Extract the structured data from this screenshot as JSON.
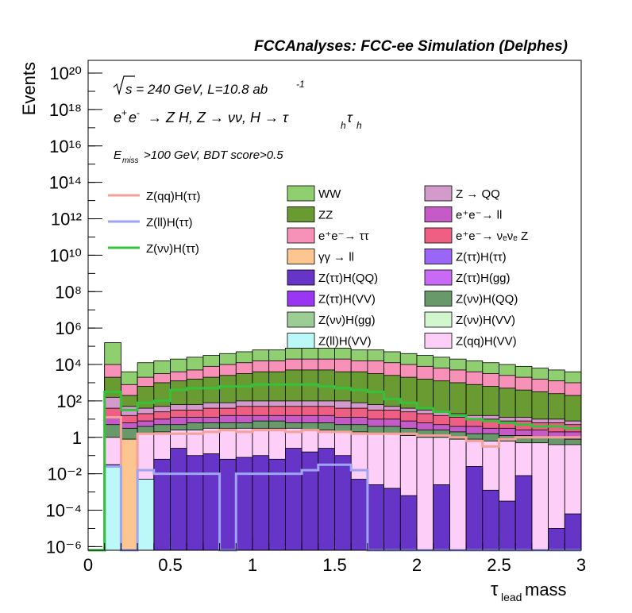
{
  "chart_data": {
    "type": "histogram-stack",
    "title": "FCCAnalyses: FCC-ee Simulation (Delphes)",
    "xlabel": "τ_lead mass",
    "ylabel": "Events",
    "xlim": [
      0,
      3
    ],
    "ylim_log10": [
      -6.2,
      20.7
    ],
    "log_y": true,
    "bin_width": 0.1,
    "annotations": {
      "energy": "√s = 240 GeV, L=10.8 ab⁻¹",
      "process": "e⁺e⁻ → Z H, Z → νν, H → τ_h τ_h",
      "cuts": "E_miss>100 GeV, BDT score>0.5"
    },
    "x_ticks": [
      {
        "v": 0,
        "label": "0"
      },
      {
        "v": 0.5,
        "label": "0.5"
      },
      {
        "v": 1,
        "label": "1"
      },
      {
        "v": 1.5,
        "label": "1.5"
      },
      {
        "v": 2,
        "label": "2"
      },
      {
        "v": 2.5,
        "label": "2.5"
      },
      {
        "v": 3,
        "label": "3"
      }
    ],
    "y_ticks": [
      {
        "exp": -6,
        "label": "10⁻⁶"
      },
      {
        "exp": -4,
        "label": "10⁻⁴"
      },
      {
        "exp": -2,
        "label": "10⁻²"
      },
      {
        "exp": 0,
        "label": "1"
      },
      {
        "exp": 2,
        "label": "10²"
      },
      {
        "exp": 4,
        "label": "10⁴"
      },
      {
        "exp": 6,
        "label": "10⁶"
      },
      {
        "exp": 8,
        "label": "10⁸"
      },
      {
        "exp": 10,
        "label": "10¹⁰"
      },
      {
        "exp": 12,
        "label": "10¹²"
      },
      {
        "exp": 14,
        "label": "10¹⁴"
      },
      {
        "exp": 16,
        "label": "10¹⁶"
      },
      {
        "exp": 18,
        "label": "10¹⁸"
      },
      {
        "exp": 20,
        "label": "10²⁰"
      }
    ],
    "stack_cumulative_log10": [
      {
        "name": "WW",
        "color": "#8FCF6F",
        "log10": [
          -6.2,
          5.2,
          3.6,
          4.1,
          4.2,
          4.3,
          4.4,
          4.5,
          4.6,
          4.7,
          4.8,
          4.8,
          4.9,
          4.9,
          4.9,
          4.9,
          4.8,
          4.8,
          4.7,
          4.6,
          4.5,
          4.4,
          4.3,
          4.2,
          4.1,
          4.0,
          3.9,
          3.8,
          3.7,
          3.6
        ]
      },
      {
        "name": "e⁺e⁻→ ττ",
        "color": "#F791B8",
        "log10": [
          -6.2,
          4.0,
          2.9,
          3.3,
          3.5,
          3.6,
          3.7,
          3.9,
          4.0,
          4.1,
          4.2,
          4.2,
          4.3,
          4.3,
          4.3,
          4.3,
          4.2,
          4.2,
          4.1,
          4.0,
          3.9,
          3.8,
          3.7,
          3.6,
          3.5,
          3.4,
          3.3,
          3.2,
          3.1,
          3.0
        ]
      },
      {
        "name": "ZZ",
        "color": "#6A9A32",
        "log10": [
          -6.2,
          3.3,
          2.3,
          2.8,
          3.0,
          3.1,
          3.2,
          3.3,
          3.4,
          3.5,
          3.6,
          3.6,
          3.7,
          3.7,
          3.7,
          3.6,
          3.6,
          3.5,
          3.4,
          3.3,
          3.2,
          3.1,
          3.0,
          2.9,
          2.8,
          2.7,
          2.6,
          2.5,
          2.4,
          2.3
        ]
      },
      {
        "name": "Z → QQ",
        "color": "#D39BCB",
        "log10": [
          -6.2,
          2.2,
          1.7,
          1.6,
          1.7,
          1.8,
          1.8,
          1.9,
          1.9,
          2.0,
          2.0,
          2.0,
          2.0,
          2.0,
          2.0,
          2.0,
          1.9,
          1.8,
          1.7,
          1.6,
          1.5,
          1.4,
          1.3,
          1.2,
          1.2,
          1.1,
          1.1,
          1.0,
          1.0,
          0.9
        ]
      },
      {
        "name": "e⁺e⁻→ νₑνₑ Z",
        "color": "#EE5F83",
        "log10": [
          -6.2,
          1.6,
          1.2,
          1.3,
          1.4,
          1.5,
          1.5,
          1.6,
          1.6,
          1.7,
          1.7,
          1.7,
          1.7,
          1.7,
          1.7,
          1.6,
          1.6,
          1.5,
          1.5,
          1.4,
          1.3,
          1.2,
          1.1,
          1.0,
          1.0,
          0.9,
          0.9,
          0.8,
          0.8,
          0.7
        ]
      },
      {
        "name": "e⁺e⁻→ ll",
        "color": "#C55BC6",
        "log10": [
          -6.2,
          1.1,
          0.8,
          0.9,
          1.0,
          1.1,
          1.1,
          1.1,
          1.2,
          1.2,
          1.2,
          1.2,
          1.2,
          1.2,
          1.2,
          1.1,
          1.1,
          1.0,
          1.0,
          0.9,
          0.8,
          0.7,
          0.6,
          0.6,
          0.5,
          0.5,
          0.4,
          0.4,
          0.3,
          0.3
        ]
      },
      {
        "name": "Z(νν)H(QQ)",
        "color": "#67996A",
        "log10": [
          -6.2,
          0.7,
          0.5,
          0.6,
          0.7,
          0.7,
          0.8,
          0.8,
          0.8,
          0.8,
          0.9,
          0.9,
          0.8,
          0.8,
          0.8,
          0.7,
          0.7,
          0.6,
          0.6,
          0.5,
          0.4,
          0.4,
          0.3,
          0.2,
          0.2,
          0.1,
          0.1,
          0.0,
          0.0,
          -0.1
        ]
      },
      {
        "name": "Z(qq)H(VV)",
        "color": "#FCCEF8",
        "log10": [
          -6.2,
          0.0,
          -0.2,
          0.2,
          0.3,
          0.4,
          0.4,
          0.5,
          0.5,
          0.5,
          0.5,
          0.5,
          0.5,
          0.4,
          0.4,
          0.3,
          0.3,
          0.2,
          0.2,
          0.1,
          0.0,
          0.0,
          -0.1,
          -0.1,
          -0.2,
          -0.2,
          -0.3,
          -0.3,
          -0.4,
          -0.4
        ]
      },
      {
        "name": "Z(ττ)H(QQ)",
        "color": "#6634C6",
        "log10": [
          -6.2,
          -1.5,
          -6.2,
          -6.2,
          -1.2,
          -0.6,
          -1.0,
          -0.9,
          -1.2,
          -1.1,
          -1.0,
          -1.2,
          -0.6,
          -0.8,
          -0.6,
          -1.0,
          -2.3,
          -2.6,
          -2.8,
          -3.2,
          -6.2,
          -2.6,
          -6.2,
          -1.6,
          -2.9,
          -3.5,
          -2.1,
          -6.2,
          -5.0,
          -4.2
        ]
      },
      {
        "name": "Z(ll)H(VV)",
        "color": "#BDF8F9",
        "log10": [
          -6.2,
          -1.6,
          -6.2,
          -2.3,
          -6.2,
          -6.2,
          -6.2,
          -6.2,
          -6.2,
          -6.2,
          -6.2,
          -6.2,
          -6.2,
          -6.2,
          -6.2,
          -6.2,
          -6.2,
          -6.2,
          -6.2,
          -6.2,
          -6.2,
          -6.2,
          -6.2,
          -6.2,
          -6.2,
          -6.2,
          -6.2,
          -6.2,
          -6.2,
          -6.2
        ]
      },
      {
        "name": "γγ → ll",
        "color": "#FDC58F",
        "log10": [
          -6.2,
          -6.2,
          -0.1,
          -6.2,
          -6.2,
          -6.2,
          -6.2,
          -6.2,
          -6.2,
          -6.2,
          -6.2,
          -6.2,
          -6.2,
          -6.2,
          -6.2,
          -6.2,
          -6.2,
          -6.2,
          -6.2,
          -6.2,
          -6.2,
          -6.2,
          -6.2,
          -6.2,
          -6.2,
          -6.2,
          -6.2,
          -6.2,
          -6.2,
          -6.2
        ]
      }
    ],
    "overlays": [
      {
        "name": "Z(qq)H(ττ)",
        "color": "#F4A19A",
        "log10": [
          -6.2,
          1.1,
          -6.2,
          0.2,
          0.2,
          0.2,
          0.2,
          0.3,
          0.4,
          0.3,
          0.4,
          0.4,
          0.3,
          0.4,
          0.3,
          0.3,
          0.2,
          0.2,
          0.2,
          0.2,
          0.1,
          0.1,
          0.0,
          -0.2,
          -0.5,
          -0.1,
          0.0,
          0.0,
          0.0,
          0.0
        ]
      },
      {
        "name": "Z(ll)H(ττ)",
        "color": "#9EA5F4",
        "log10": [
          -6.2,
          -1.6,
          -6.2,
          -1.8,
          -2.0,
          -2.0,
          -2.0,
          -2.0,
          -6.2,
          -2.0,
          -2.0,
          -2.0,
          -2.0,
          -1.8,
          -1.5,
          -1.5,
          -1.8,
          -6.2,
          -6.2,
          -6.2,
          -6.2,
          -6.2,
          -6.2,
          -6.2,
          -6.2,
          -6.2,
          -6.2,
          -6.2,
          -6.2,
          -6.2
        ]
      },
      {
        "name": "Z(νν)H(ττ)",
        "color": "#36C13C",
        "log10": [
          -6.2,
          2.5,
          1.5,
          1.9,
          2.0,
          2.6,
          2.7,
          2.7,
          2.8,
          2.8,
          2.9,
          2.9,
          2.9,
          2.9,
          2.8,
          2.7,
          2.6,
          2.5,
          2.1,
          1.9,
          1.6,
          1.4,
          1.2,
          1.0,
          0.9,
          0.8,
          0.7,
          0.6,
          0.6,
          0.5
        ]
      }
    ],
    "legend_overlays": [
      "Z(qq)H(ττ)",
      "Z(ll)H(ττ)",
      "Z(νν)H(ττ)"
    ],
    "legend_fills": [
      {
        "label": "WW",
        "color": "#8FCF6F"
      },
      {
        "label": "Z → QQ",
        "color": "#D39BCB"
      },
      {
        "label": "ZZ",
        "color": "#6A9A32"
      },
      {
        "label": "e⁺e⁻→ ll",
        "color": "#C55BC6"
      },
      {
        "label": "e⁺e⁻→ ττ",
        "color": "#F791B8"
      },
      {
        "label": "e⁺e⁻→ νₑνₑ Z",
        "color": "#EE5F83"
      },
      {
        "label": "γγ → ll",
        "color": "#FDC58F"
      },
      {
        "label": "Z(ττ)H(ττ)",
        "color": "#9966F6"
      },
      {
        "label": "Z(ττ)H(QQ)",
        "color": "#6634C6"
      },
      {
        "label": "Z(ττ)H(gg)",
        "color": "#C86AF5"
      },
      {
        "label": "Z(ττ)H(VV)",
        "color": "#9B35F4"
      },
      {
        "label": "Z(νν)H(QQ)",
        "color": "#67996A"
      },
      {
        "label": "Z(νν)H(gg)",
        "color": "#9BCD95"
      },
      {
        "label": "Z(νν)H(VV)",
        "color": "#D2F7CF"
      },
      {
        "label": "Z(ll)H(VV)",
        "color": "#BDF8F9"
      },
      {
        "label": "Z(qq)H(VV)",
        "color": "#FCCEF8"
      }
    ]
  }
}
